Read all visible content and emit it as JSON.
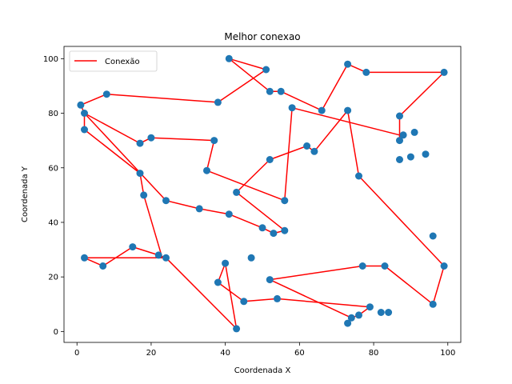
{
  "chart_data": {
    "type": "line",
    "title": "Melhor conexao",
    "xlabel": "Coordenada X",
    "ylabel": "Coordenada Y",
    "xlim": [
      -3.5,
      103.5
    ],
    "ylim": [
      -4,
      104.5
    ],
    "xticks": [
      0,
      20,
      40,
      60,
      80,
      100
    ],
    "yticks": [
      0,
      20,
      40,
      60,
      80,
      100
    ],
    "legend": {
      "position": "upper-left",
      "entries": [
        "Conexão"
      ]
    },
    "colors": {
      "line": "#ff0000",
      "points": "#1f77b4"
    },
    "series": [
      {
        "name": "Conexão",
        "points": [
          [
            41,
            100
          ],
          [
            51,
            96
          ],
          [
            38,
            84
          ],
          [
            8,
            87
          ],
          [
            1,
            83
          ],
          [
            2,
            80
          ],
          [
            24,
            48
          ],
          [
            33,
            45
          ],
          [
            41,
            43
          ],
          [
            50,
            38
          ],
          [
            53,
            36
          ],
          [
            56,
            37
          ],
          [
            43,
            51
          ],
          [
            52,
            63
          ],
          [
            62,
            68
          ],
          [
            64,
            66
          ],
          [
            73,
            81
          ],
          [
            76,
            57
          ],
          [
            99,
            24
          ],
          [
            96,
            10
          ],
          [
            83,
            24
          ],
          [
            77,
            24
          ],
          [
            52,
            19
          ],
          [
            74,
            5
          ],
          [
            76,
            6
          ],
          [
            79,
            9
          ],
          [
            54,
            12
          ],
          [
            45,
            11
          ],
          [
            38,
            18
          ],
          [
            40,
            25
          ],
          [
            43,
            1
          ],
          [
            24,
            27
          ],
          [
            22,
            28
          ],
          [
            15,
            31
          ],
          [
            7,
            24
          ],
          [
            2,
            27
          ],
          [
            23,
            27
          ],
          [
            18,
            50
          ],
          [
            17,
            58
          ],
          [
            2,
            74
          ],
          [
            2,
            80
          ],
          [
            17,
            69
          ],
          [
            20,
            71
          ],
          [
            37,
            70
          ],
          [
            35,
            59
          ],
          [
            56,
            48
          ],
          [
            58,
            82
          ],
          [
            87,
            72
          ],
          [
            88,
            72
          ],
          [
            87,
            70
          ],
          [
            87,
            79
          ],
          [
            99,
            95
          ],
          [
            78,
            95
          ],
          [
            73,
            98
          ],
          [
            66,
            81
          ],
          [
            55,
            88
          ],
          [
            52,
            88
          ],
          [
            41,
            100
          ]
        ]
      }
    ],
    "points": [
      [
        41,
        100
      ],
      [
        51,
        96
      ],
      [
        73,
        98
      ],
      [
        78,
        95
      ],
      [
        99,
        95
      ],
      [
        8,
        87
      ],
      [
        52,
        88
      ],
      [
        55,
        88
      ],
      [
        1,
        83
      ],
      [
        38,
        84
      ],
      [
        58,
        82
      ],
      [
        66,
        81
      ],
      [
        73,
        81
      ],
      [
        2,
        80
      ],
      [
        87,
        79
      ],
      [
        2,
        74
      ],
      [
        88,
        72
      ],
      [
        91,
        73
      ],
      [
        87,
        70
      ],
      [
        17,
        69
      ],
      [
        20,
        71
      ],
      [
        37,
        70
      ],
      [
        62,
        68
      ],
      [
        64,
        66
      ],
      [
        94,
        65
      ],
      [
        52,
        63
      ],
      [
        87,
        63
      ],
      [
        90,
        64
      ],
      [
        35,
        59
      ],
      [
        17,
        58
      ],
      [
        76,
        57
      ],
      [
        43,
        51
      ],
      [
        18,
        50
      ],
      [
        24,
        48
      ],
      [
        56,
        48
      ],
      [
        33,
        45
      ],
      [
        41,
        43
      ],
      [
        50,
        38
      ],
      [
        53,
        36
      ],
      [
        56,
        37
      ],
      [
        96,
        35
      ],
      [
        15,
        31
      ],
      [
        22,
        28
      ],
      [
        24,
        27
      ],
      [
        2,
        27
      ],
      [
        7,
        24
      ],
      [
        40,
        25
      ],
      [
        47,
        27
      ],
      [
        77,
        24
      ],
      [
        83,
        24
      ],
      [
        99,
        24
      ],
      [
        52,
        19
      ],
      [
        38,
        18
      ],
      [
        54,
        12
      ],
      [
        45,
        11
      ],
      [
        96,
        10
      ],
      [
        79,
        9
      ],
      [
        82,
        7
      ],
      [
        84,
        7
      ],
      [
        76,
        6
      ],
      [
        74,
        5
      ],
      [
        73,
        3
      ],
      [
        43,
        1
      ]
    ]
  }
}
